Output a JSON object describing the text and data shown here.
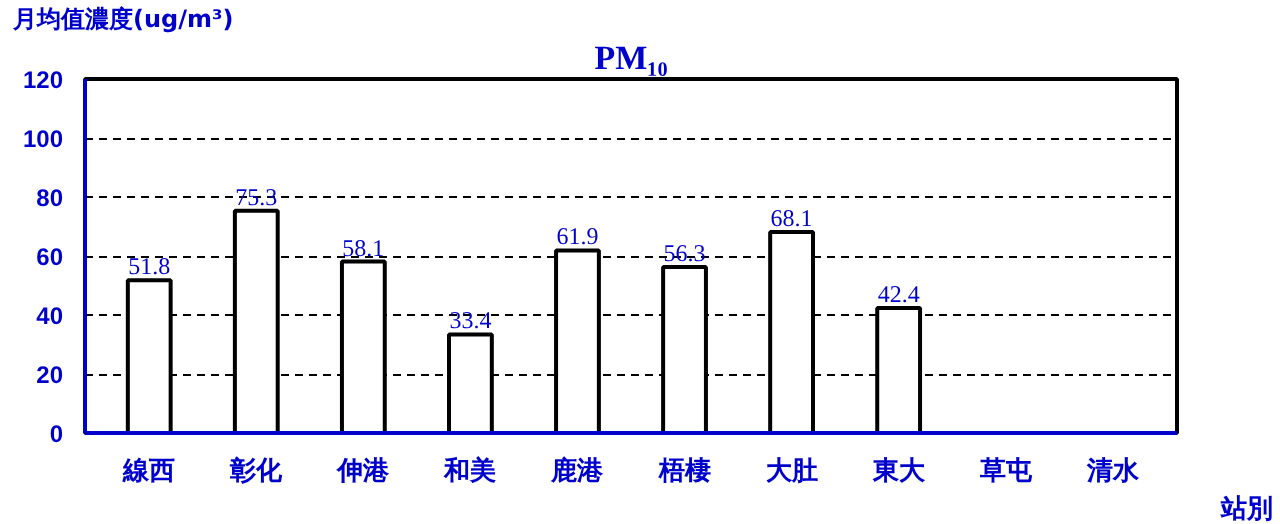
{
  "chart_data": {
    "type": "bar",
    "title": "PM₁₀",
    "ylabel": "月均值濃度(ug/m³)",
    "xlabel": "站別",
    "categories": [
      "線西",
      "彰化",
      "伸港",
      "和美",
      "鹿港",
      "梧棲",
      "大肚",
      "東大",
      "草屯",
      "清水"
    ],
    "values": [
      51.8,
      75.3,
      58.1,
      33.4,
      61.9,
      56.3,
      68.1,
      42.4,
      null,
      null
    ],
    "color": "#ffffff",
    "data_labels": true,
    "ylim": [
      0,
      120
    ],
    "yticks": [
      0,
      20,
      40,
      60,
      80,
      100,
      120
    ],
    "grid": "y"
  }
}
